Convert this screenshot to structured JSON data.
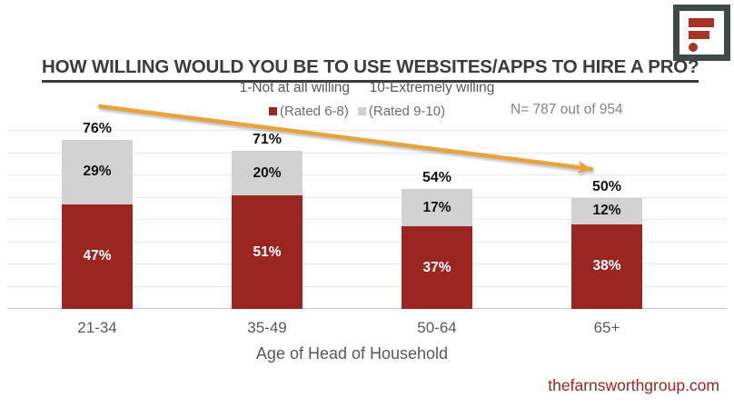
{
  "header": {
    "title": "HOW WILLING WOULD YOU BE TO USE WEBSITES/APPS TO HIRE A PRO?",
    "scale_note": "1-Not at all willing     10-Extremely willing",
    "sample_size": "N= 787 out of 954"
  },
  "legend": {
    "items": [
      {
        "label": "(Rated 6-8)",
        "color": "#9A2521"
      },
      {
        "label": "(Rated 9-10)",
        "color": "#CFCFCF"
      }
    ]
  },
  "chart_data": {
    "type": "bar",
    "stacked": true,
    "title": "HOW WILLING WOULD YOU BE TO USE WEBSITES/APPS TO HIRE A PRO?",
    "subtitle": "1-Not at all willing  10-Extremely willing",
    "categories": [
      "21-34",
      "35-49",
      "50-64",
      "65+"
    ],
    "series": [
      {
        "name": "(Rated 6-8)",
        "color": "#9A2521",
        "values": [
          47,
          51,
          37,
          38
        ]
      },
      {
        "name": "(Rated 9-10)",
        "color": "#D2D2D2",
        "values": [
          29,
          20,
          17,
          12
        ]
      }
    ],
    "totals": [
      76,
      71,
      54,
      50
    ],
    "xlabel": "Age of Head of Household",
    "ylabel": "",
    "ylim": [
      0,
      80
    ],
    "grid_step": 10,
    "grid": true,
    "legend_position": "top",
    "annotations": [
      "downward trend arrow from 76% toward 50%"
    ]
  },
  "footer": {
    "website": "thefarnsworthgroup.com"
  },
  "colors": {
    "bar_red": "#9A2521",
    "bar_gray": "#D2D2D2",
    "arrow_gold": "#E8A33C",
    "title_text": "#3C3C3C",
    "muted_text": "#595959",
    "gridline": "#E8E8E8",
    "baseline": "#C6C6C6",
    "logo_frame": "#3E4A45",
    "logo_red": "#A93226",
    "footer_red": "#9A2521"
  }
}
